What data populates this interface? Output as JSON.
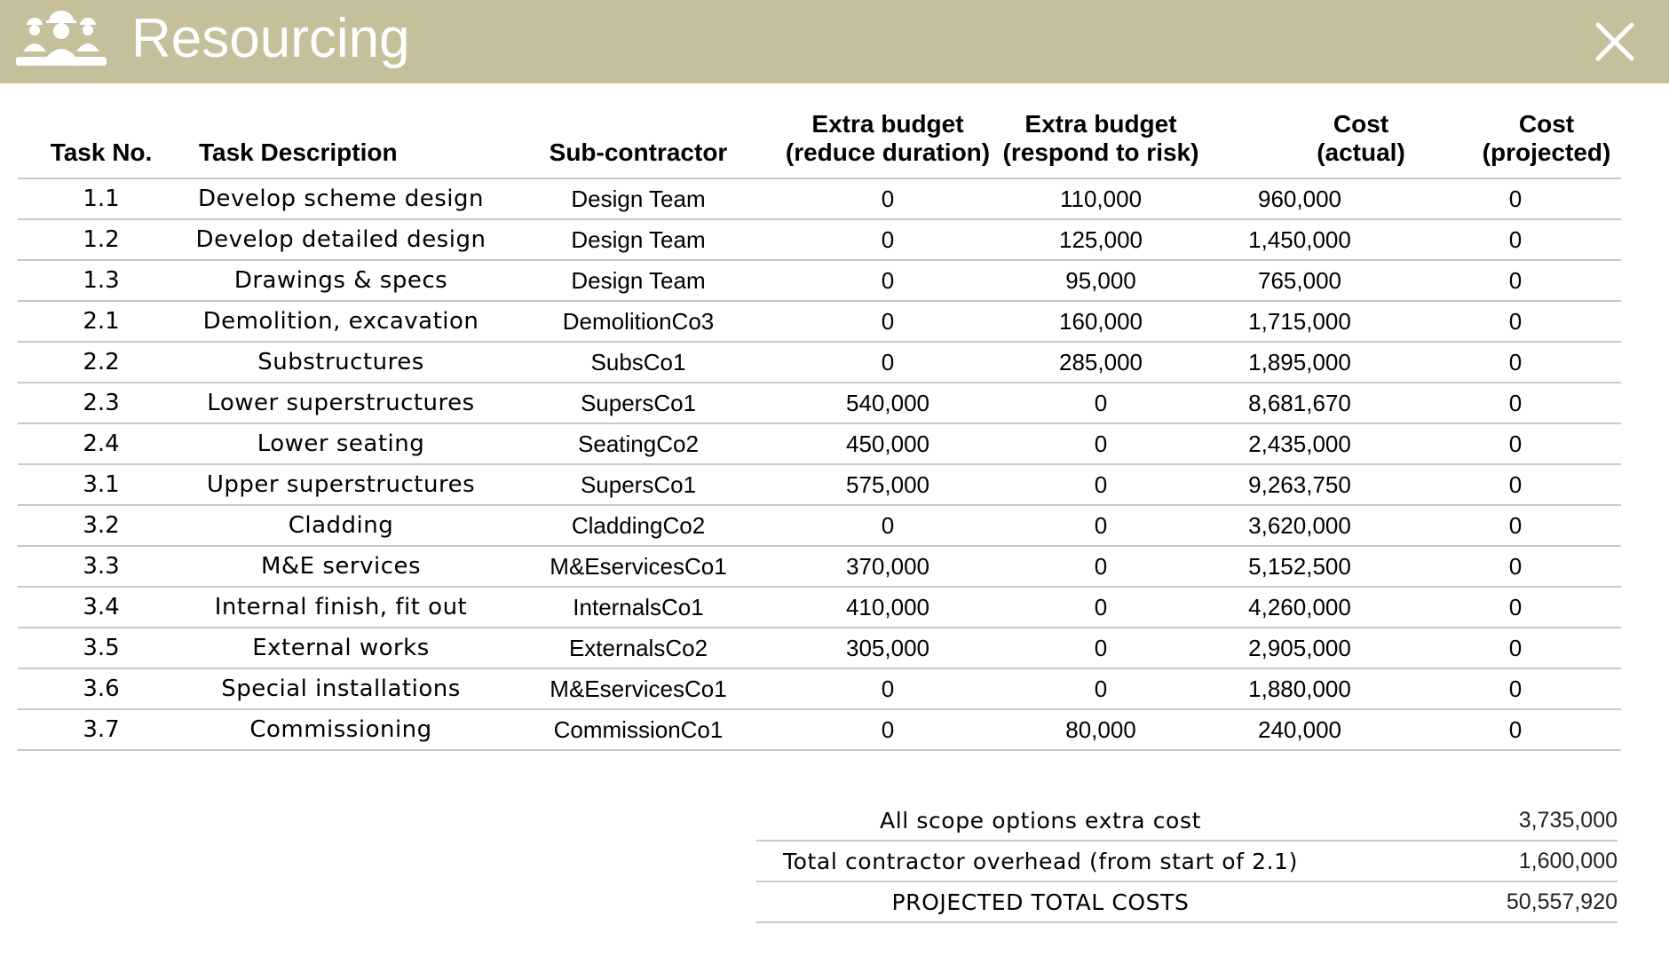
{
  "header": {
    "title": "Resourcing",
    "background_color": "#c5bf9b",
    "logo_icon": "team-workers-icon",
    "close_icon": "close-icon"
  },
  "table": {
    "columns": [
      "Task No.",
      "Task Description",
      "Sub-contractor",
      "Extra budget\n(reduce duration)",
      "Extra budget\n(respond to risk)",
      "Cost\n(actual)",
      "Cost\n(projected)"
    ],
    "rows": [
      {
        "task_no": "1.1",
        "description": "Develop scheme design",
        "subcontractor": "Design Team",
        "extra_reduce": "0",
        "extra_risk": "110,000",
        "cost_actual": "960,000",
        "cost_projected": "0"
      },
      {
        "task_no": "1.2",
        "description": "Develop detailed design",
        "subcontractor": "Design Team",
        "extra_reduce": "0",
        "extra_risk": "125,000",
        "cost_actual": "1,450,000",
        "cost_projected": "0"
      },
      {
        "task_no": "1.3",
        "description": "Drawings & specs",
        "subcontractor": "Design Team",
        "extra_reduce": "0",
        "extra_risk": "95,000",
        "cost_actual": "765,000",
        "cost_projected": "0"
      },
      {
        "task_no": "2.1",
        "description": "Demolition, excavation",
        "subcontractor": "DemolitionCo3",
        "extra_reduce": "0",
        "extra_risk": "160,000",
        "cost_actual": "1,715,000",
        "cost_projected": "0"
      },
      {
        "task_no": "2.2",
        "description": "Substructures",
        "subcontractor": "SubsCo1",
        "extra_reduce": "0",
        "extra_risk": "285,000",
        "cost_actual": "1,895,000",
        "cost_projected": "0"
      },
      {
        "task_no": "2.3",
        "description": "Lower superstructures",
        "subcontractor": "SupersCo1",
        "extra_reduce": "540,000",
        "extra_risk": "0",
        "cost_actual": "8,681,670",
        "cost_projected": "0"
      },
      {
        "task_no": "2.4",
        "description": "Lower seating",
        "subcontractor": "SeatingCo2",
        "extra_reduce": "450,000",
        "extra_risk": "0",
        "cost_actual": "2,435,000",
        "cost_projected": "0"
      },
      {
        "task_no": "3.1",
        "description": "Upper superstructures",
        "subcontractor": "SupersCo1",
        "extra_reduce": "575,000",
        "extra_risk": "0",
        "cost_actual": "9,263,750",
        "cost_projected": "0"
      },
      {
        "task_no": "3.2",
        "description": "Cladding",
        "subcontractor": "CladdingCo2",
        "extra_reduce": "0",
        "extra_risk": "0",
        "cost_actual": "3,620,000",
        "cost_projected": "0"
      },
      {
        "task_no": "3.3",
        "description": "M&E services",
        "subcontractor": "M&EservicesCo1",
        "extra_reduce": "370,000",
        "extra_risk": "0",
        "cost_actual": "5,152,500",
        "cost_projected": "0"
      },
      {
        "task_no": "3.4",
        "description": "Internal finish, fit out",
        "subcontractor": "InternalsCo1",
        "extra_reduce": "410,000",
        "extra_risk": "0",
        "cost_actual": "4,260,000",
        "cost_projected": "0"
      },
      {
        "task_no": "3.5",
        "description": "External works",
        "subcontractor": "ExternalsCo2",
        "extra_reduce": "305,000",
        "extra_risk": "0",
        "cost_actual": "2,905,000",
        "cost_projected": "0"
      },
      {
        "task_no": "3.6",
        "description": "Special installations",
        "subcontractor": "M&EservicesCo1",
        "extra_reduce": "0",
        "extra_risk": "0",
        "cost_actual": "1,880,000",
        "cost_projected": "0"
      },
      {
        "task_no": "3.7",
        "description": "Commissioning",
        "subcontractor": "CommissionCo1",
        "extra_reduce": "0",
        "extra_risk": "80,000",
        "cost_actual": "240,000",
        "cost_projected": "0"
      }
    ]
  },
  "summary": [
    {
      "label": "All scope options extra cost",
      "value": "3,735,000"
    },
    {
      "label": "Total contractor overhead (from start of 2.1)",
      "value": "1,600,000"
    },
    {
      "label": "PROJECTED TOTAL COSTS",
      "value": "50,557,920"
    }
  ]
}
